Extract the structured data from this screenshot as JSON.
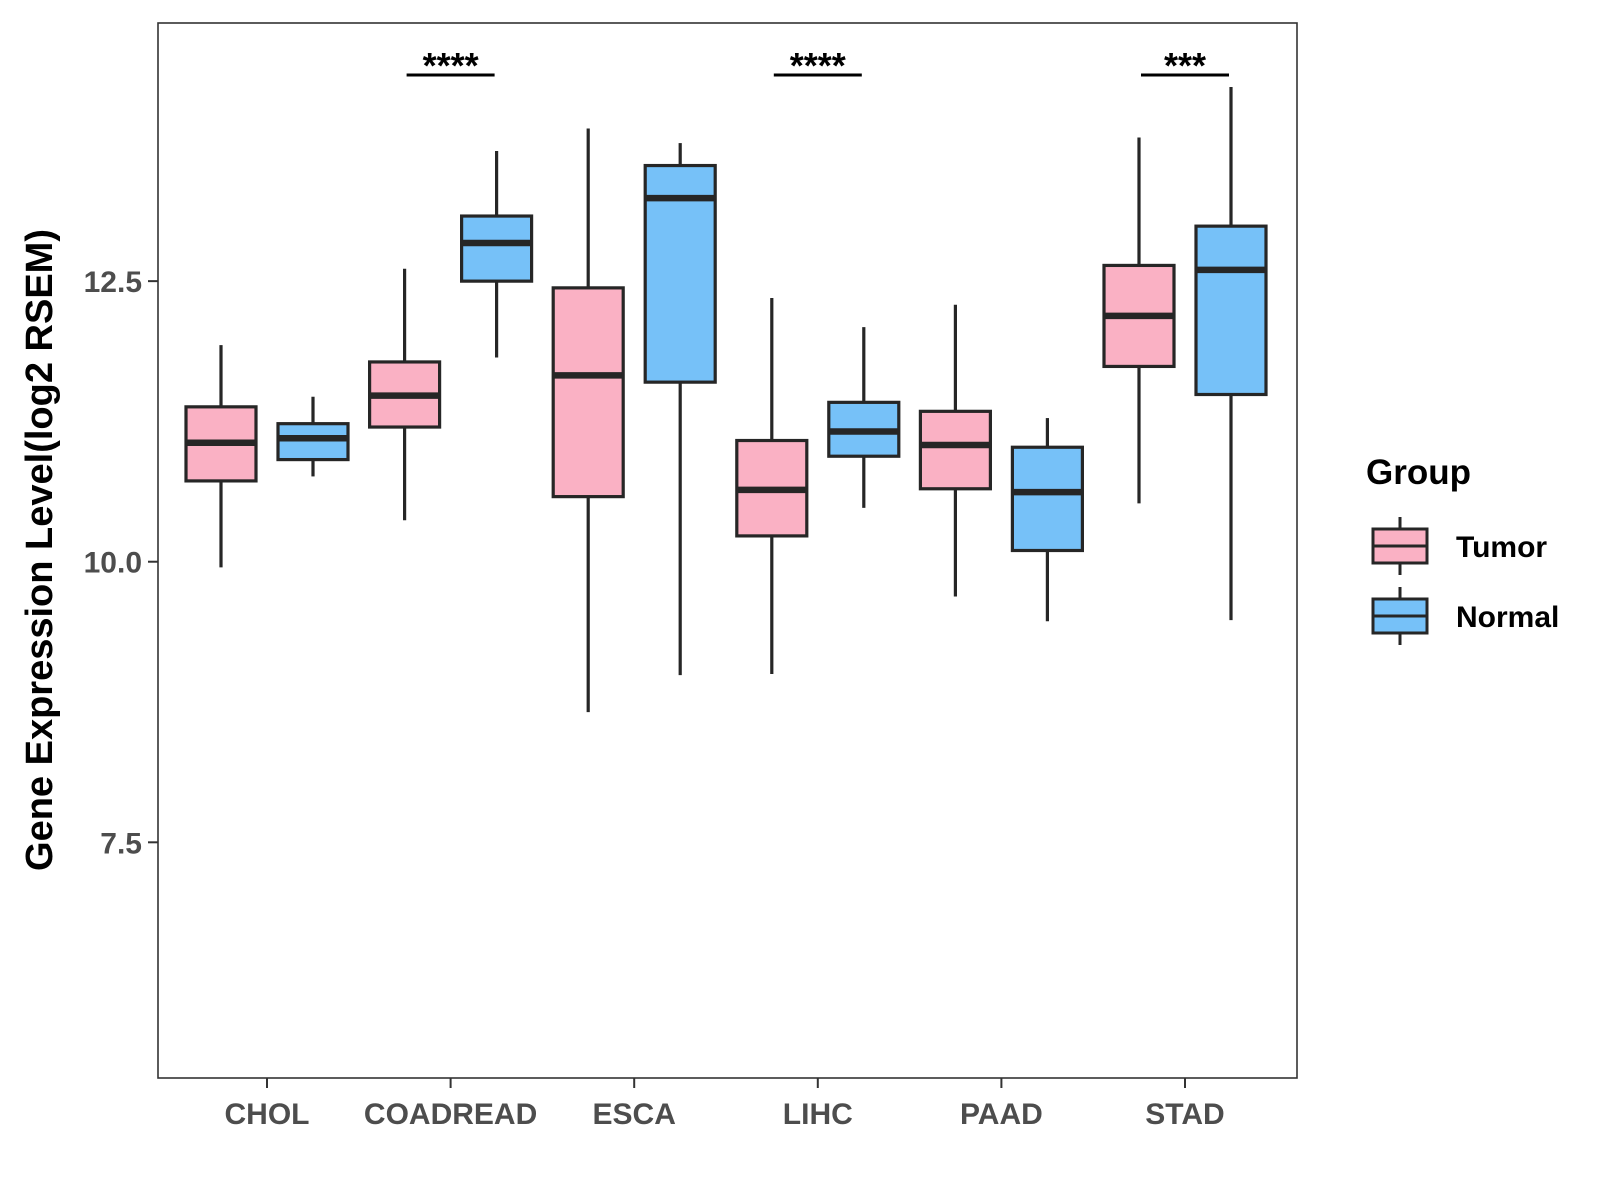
{
  "chart_data": {
    "type": "boxplot",
    "title": "",
    "xlabel": "",
    "ylabel": "Gene Expression Level(log2 RSEM)",
    "ylim": [
      5.4,
      14.8
    ],
    "yticks": [
      7.5,
      10.0,
      12.5
    ],
    "ytick_labels": [
      "7.5",
      "10.0",
      "12.5"
    ],
    "grid": false,
    "categories": [
      "CHOL",
      "COADREAD",
      "ESCA",
      "LIHC",
      "PAAD",
      "STAD"
    ],
    "legend": {
      "title": "Group",
      "placement": "right",
      "entries": [
        "Tumor",
        "Normal"
      ]
    },
    "series": [
      {
        "name": "Tumor",
        "color": "#FAB1C4",
        "boxes": [
          {
            "category": "CHOL",
            "whisker_low": 9.95,
            "q1": 10.72,
            "median": 11.06,
            "q3": 11.38,
            "whisker_high": 11.93
          },
          {
            "category": "COADREAD",
            "whisker_low": 10.37,
            "q1": 11.2,
            "median": 11.48,
            "q3": 11.78,
            "whisker_high": 12.61
          },
          {
            "category": "ESCA",
            "whisker_low": 8.66,
            "q1": 10.58,
            "median": 11.66,
            "q3": 12.44,
            "whisker_high": 13.86
          },
          {
            "category": "LIHC",
            "whisker_low": 9.0,
            "q1": 10.23,
            "median": 10.64,
            "q3": 11.08,
            "whisker_high": 12.35
          },
          {
            "category": "PAAD",
            "whisker_low": 9.69,
            "q1": 10.65,
            "median": 11.04,
            "q3": 11.34,
            "whisker_high": 12.29
          },
          {
            "category": "STAD",
            "whisker_low": 10.52,
            "q1": 11.74,
            "median": 12.19,
            "q3": 12.64,
            "whisker_high": 13.78
          }
        ]
      },
      {
        "name": "Normal",
        "color": "#76C1F8",
        "boxes": [
          {
            "category": "CHOL",
            "whisker_low": 10.76,
            "q1": 10.91,
            "median": 11.1,
            "q3": 11.23,
            "whisker_high": 11.47
          },
          {
            "category": "COADREAD",
            "whisker_low": 11.82,
            "q1": 12.5,
            "median": 12.84,
            "q3": 13.08,
            "whisker_high": 13.66
          },
          {
            "category": "ESCA",
            "whisker_low": 8.99,
            "q1": 11.6,
            "median": 13.24,
            "q3": 13.53,
            "whisker_high": 13.73
          },
          {
            "category": "LIHC",
            "whisker_low": 10.48,
            "q1": 10.94,
            "median": 11.16,
            "q3": 11.42,
            "whisker_high": 12.09
          },
          {
            "category": "PAAD",
            "whisker_low": 9.47,
            "q1": 10.1,
            "median": 10.62,
            "q3": 11.02,
            "whisker_high": 11.28
          },
          {
            "category": "STAD",
            "whisker_low": 9.48,
            "q1": 11.49,
            "median": 12.6,
            "q3": 12.99,
            "whisker_high": 14.23
          }
        ]
      }
    ],
    "annotations": [
      {
        "category": "COADREAD",
        "text": "****"
      },
      {
        "category": "LIHC",
        "text": "****"
      },
      {
        "category": "STAD",
        "text": "***"
      }
    ]
  }
}
